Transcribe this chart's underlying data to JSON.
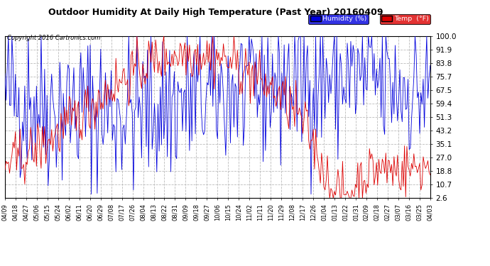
{
  "title": "Outdoor Humidity At Daily High Temperature (Past Year) 20160409",
  "copyright": "Copyright 2016 Cartronics.com",
  "legend_humidity": "Humidity (%)",
  "legend_temp": "Temp  (°F)",
  "humidity_color": "#0000dd",
  "temp_color": "#dd0000",
  "background_color": "#ffffff",
  "plot_bg_color": "#ffffff",
  "grid_color": "#bbbbbb",
  "yticks": [
    2.6,
    10.7,
    18.8,
    27.0,
    35.1,
    43.2,
    51.3,
    59.4,
    67.5,
    75.7,
    83.8,
    91.9,
    100.0
  ],
  "ylim_min": 2.6,
  "ylim_max": 100.0,
  "x_labels": [
    "04/09",
    "04/18",
    "04/27",
    "05/06",
    "05/15",
    "05/24",
    "06/02",
    "06/11",
    "06/20",
    "06/29",
    "07/08",
    "07/17",
    "07/26",
    "08/04",
    "08/13",
    "08/22",
    "08/31",
    "09/09",
    "09/18",
    "09/27",
    "10/06",
    "10/15",
    "10/24",
    "11/02",
    "11/11",
    "11/20",
    "11/29",
    "12/08",
    "12/17",
    "12/26",
    "01/04",
    "01/13",
    "01/22",
    "01/31",
    "02/09",
    "02/18",
    "02/27",
    "03/07",
    "03/16",
    "03/25",
    "04/03"
  ],
  "n_points": 365,
  "seed": 42
}
